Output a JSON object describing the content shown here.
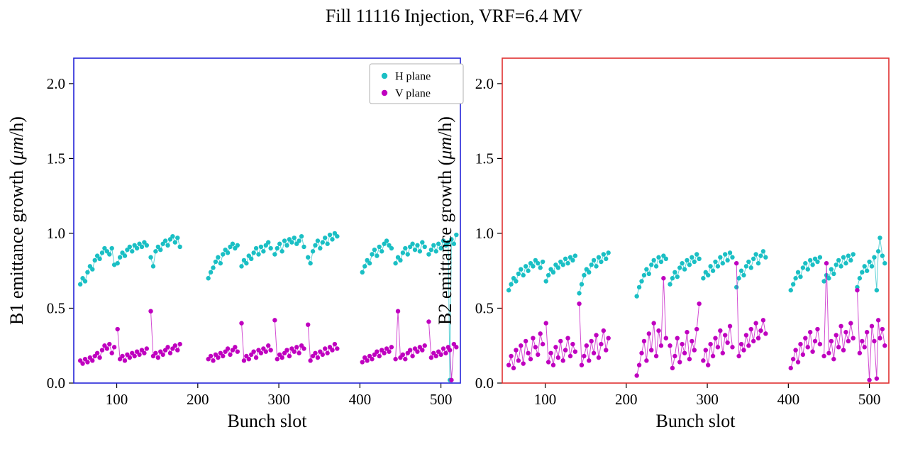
{
  "title": "Fill 11116 Injection, VRF=6.4 MV",
  "chart_data": {
    "type": "scatter",
    "xlabel": "Bunch slot",
    "xlim": [
      47,
      524
    ],
    "ylim": [
      0,
      2.17
    ],
    "grid": false,
    "x_ticks": {
      "values": [
        100,
        200,
        300,
        400,
        500
      ],
      "labels": [
        "100",
        "200",
        "300",
        "400",
        "500"
      ]
    },
    "y_ticks": {
      "values": [
        0,
        0.5,
        1.0,
        1.5,
        2.0
      ],
      "labels": [
        "0.0",
        "0.5",
        "1.0",
        "1.5",
        "2.0"
      ]
    },
    "legend": {
      "position": "upper right of left plot",
      "items": [
        {
          "label": "H plane",
          "color": "#1abfc4"
        },
        {
          "label": "V plane",
          "color": "#bf00bf"
        }
      ]
    },
    "charts": [
      {
        "name": "B1",
        "frame_color": "#2424d8",
        "ylabel_pre": "B1 emittance growth (",
        "ylabel_math": "μm",
        "ylabel_post": "/h)",
        "show_legend": true,
        "segments_x": [
          [
            55,
            58,
            61,
            64,
            67,
            70,
            73,
            76,
            79,
            82,
            85,
            88,
            91,
            94,
            97
          ],
          [
            101,
            104,
            107,
            110,
            113,
            116,
            119,
            122,
            125,
            128,
            131,
            134,
            137
          ],
          [
            142,
            145,
            148,
            151,
            154,
            157,
            160,
            163,
            166,
            169,
            172,
            175,
            178
          ],
          [
            213,
            216,
            219,
            222,
            225,
            228,
            231,
            234,
            237,
            240,
            243,
            246,
            249
          ],
          [
            254,
            257,
            260,
            263,
            266,
            269,
            272,
            275,
            278,
            281,
            284,
            287,
            290
          ],
          [
            295,
            298,
            301,
            304,
            307,
            310,
            313,
            316,
            319,
            322,
            325,
            328,
            331
          ],
          [
            336,
            339,
            342,
            345,
            348,
            351,
            354,
            357,
            360,
            363,
            366,
            369,
            372
          ],
          [
            403,
            406,
            409,
            412,
            415,
            418,
            421,
            424,
            427,
            430,
            433,
            436,
            439
          ],
          [
            444,
            447,
            450,
            453,
            456,
            459,
            462,
            465,
            468,
            471,
            474,
            477,
            480
          ],
          [
            485,
            488,
            491,
            494,
            497,
            500,
            503,
            506,
            509,
            511,
            513,
            516,
            519
          ]
        ],
        "series": [
          {
            "name": "H plane",
            "color": "#1abfc4",
            "segments_y": [
              [
                0.66,
                0.7,
                0.68,
                0.74,
                0.78,
                0.76,
                0.82,
                0.85,
                0.83,
                0.87,
                0.9,
                0.88,
                0.86,
                0.9,
                0.79
              ],
              [
                0.8,
                0.84,
                0.87,
                0.85,
                0.89,
                0.91,
                0.88,
                0.92,
                0.9,
                0.93,
                0.91,
                0.94,
                0.92
              ],
              [
                0.84,
                0.78,
                0.88,
                0.91,
                0.89,
                0.93,
                0.95,
                0.92,
                0.96,
                0.98,
                0.94,
                0.97,
                0.91
              ],
              [
                0.7,
                0.74,
                0.77,
                0.81,
                0.84,
                0.8,
                0.86,
                0.89,
                0.87,
                0.91,
                0.93,
                0.9,
                0.92
              ],
              [
                0.78,
                0.82,
                0.8,
                0.85,
                0.83,
                0.87,
                0.9,
                0.86,
                0.91,
                0.88,
                0.92,
                0.94,
                0.9
              ],
              [
                0.86,
                0.9,
                0.93,
                0.88,
                0.95,
                0.92,
                0.96,
                0.94,
                0.97,
                0.93,
                0.95,
                0.98,
                0.91
              ],
              [
                0.84,
                0.8,
                0.88,
                0.92,
                0.95,
                0.9,
                0.94,
                0.97,
                0.93,
                0.99,
                0.96,
                1.0,
                0.98
              ],
              [
                0.74,
                0.78,
                0.82,
                0.8,
                0.86,
                0.89,
                0.85,
                0.91,
                0.88,
                0.93,
                0.95,
                0.92,
                0.9
              ],
              [
                0.8,
                0.84,
                0.82,
                0.87,
                0.9,
                0.86,
                0.91,
                0.93,
                0.89,
                0.92,
                0.88,
                0.94,
                0.91
              ],
              [
                0.86,
                0.89,
                0.92,
                0.88,
                0.93,
                0.9,
                0.95,
                0.92,
                0.94,
                0.02,
                0.96,
                0.93,
                0.99
              ]
            ]
          },
          {
            "name": "V plane",
            "color": "#bf00bf",
            "segments_y": [
              [
                0.15,
                0.13,
                0.16,
                0.14,
                0.17,
                0.15,
                0.18,
                0.2,
                0.17,
                0.22,
                0.25,
                0.23,
                0.26,
                0.2,
                0.24
              ],
              [
                0.36,
                0.16,
                0.18,
                0.15,
                0.19,
                0.17,
                0.2,
                0.18,
                0.21,
                0.19,
                0.22,
                0.2,
                0.23
              ],
              [
                0.48,
                0.18,
                0.2,
                0.17,
                0.21,
                0.19,
                0.22,
                0.24,
                0.2,
                0.23,
                0.25,
                0.22,
                0.26
              ],
              [
                0.16,
                0.18,
                0.15,
                0.19,
                0.17,
                0.2,
                0.18,
                0.21,
                0.23,
                0.19,
                0.22,
                0.24,
                0.21
              ],
              [
                0.4,
                0.15,
                0.18,
                0.16,
                0.19,
                0.21,
                0.17,
                0.22,
                0.2,
                0.23,
                0.21,
                0.25,
                0.22
              ],
              [
                0.42,
                0.16,
                0.19,
                0.17,
                0.2,
                0.22,
                0.18,
                0.23,
                0.21,
                0.24,
                0.2,
                0.25,
                0.23
              ],
              [
                0.39,
                0.15,
                0.18,
                0.2,
                0.17,
                0.21,
                0.19,
                0.23,
                0.2,
                0.24,
                0.22,
                0.26,
                0.23
              ],
              [
                0.14,
                0.17,
                0.15,
                0.18,
                0.16,
                0.19,
                0.21,
                0.18,
                0.22,
                0.2,
                0.23,
                0.21,
                0.24
              ],
              [
                0.16,
                0.48,
                0.17,
                0.19,
                0.16,
                0.2,
                0.22,
                0.18,
                0.23,
                0.21,
                0.24,
                0.22,
                0.25
              ],
              [
                0.41,
                0.17,
                0.2,
                0.18,
                0.21,
                0.19,
                0.23,
                0.2,
                0.24,
                0.22,
                0.02,
                0.26,
                0.24
              ]
            ]
          }
        ]
      },
      {
        "name": "B2",
        "frame_color": "#e03030",
        "ylabel_pre": "B2 emittance growth (",
        "ylabel_math": "μm",
        "ylabel_post": "/h)",
        "show_legend": false,
        "segments_x": [
          [
            55,
            58,
            61,
            64,
            67,
            70,
            73,
            76,
            79,
            82,
            85,
            88,
            91,
            94,
            97
          ],
          [
            101,
            104,
            107,
            110,
            113,
            116,
            119,
            122,
            125,
            128,
            131,
            134,
            137
          ],
          [
            142,
            145,
            148,
            151,
            154,
            157,
            160,
            163,
            166,
            169,
            172,
            175,
            178
          ],
          [
            213,
            216,
            219,
            222,
            225,
            228,
            231,
            234,
            237,
            240,
            243,
            246,
            249
          ],
          [
            254,
            257,
            260,
            263,
            266,
            269,
            272,
            275,
            278,
            281,
            284,
            287,
            290
          ],
          [
            295,
            298,
            301,
            304,
            307,
            310,
            313,
            316,
            319,
            322,
            325,
            328,
            331
          ],
          [
            336,
            339,
            342,
            345,
            348,
            351,
            354,
            357,
            360,
            363,
            366,
            369,
            372
          ],
          [
            403,
            406,
            409,
            412,
            415,
            418,
            421,
            424,
            427,
            430,
            433,
            436,
            439
          ],
          [
            444,
            447,
            450,
            453,
            456,
            459,
            462,
            465,
            468,
            471,
            474,
            477,
            480
          ],
          [
            485,
            488,
            491,
            494,
            497,
            500,
            503,
            506,
            509,
            511,
            513,
            516,
            519
          ]
        ],
        "series": [
          {
            "name": "H plane",
            "color": "#1abfc4",
            "segments_y": [
              [
                0.62,
                0.66,
                0.7,
                0.68,
                0.73,
                0.76,
                0.72,
                0.78,
                0.75,
                0.8,
                0.78,
                0.82,
                0.8,
                0.77,
                0.81
              ],
              [
                0.68,
                0.72,
                0.76,
                0.74,
                0.79,
                0.77,
                0.81,
                0.79,
                0.83,
                0.8,
                0.84,
                0.82,
                0.85
              ],
              [
                0.6,
                0.66,
                0.72,
                0.76,
                0.74,
                0.79,
                0.82,
                0.78,
                0.84,
                0.81,
                0.86,
                0.83,
                0.87
              ],
              [
                0.58,
                0.64,
                0.68,
                0.72,
                0.76,
                0.73,
                0.79,
                0.82,
                0.78,
                0.84,
                0.81,
                0.85,
                0.83
              ],
              [
                0.66,
                0.7,
                0.74,
                0.71,
                0.77,
                0.8,
                0.76,
                0.82,
                0.79,
                0.84,
                0.81,
                0.86,
                0.83
              ],
              [
                0.7,
                0.74,
                0.72,
                0.78,
                0.75,
                0.81,
                0.78,
                0.84,
                0.8,
                0.86,
                0.82,
                0.87,
                0.84
              ],
              [
                0.64,
                0.7,
                0.75,
                0.72,
                0.78,
                0.81,
                0.77,
                0.83,
                0.86,
                0.8,
                0.85,
                0.88,
                0.84
              ],
              [
                0.62,
                0.66,
                0.7,
                0.74,
                0.71,
                0.77,
                0.8,
                0.76,
                0.82,
                0.79,
                0.83,
                0.81,
                0.84
              ],
              [
                0.68,
                0.72,
                0.7,
                0.76,
                0.73,
                0.79,
                0.82,
                0.78,
                0.84,
                0.8,
                0.85,
                0.82,
                0.86
              ],
              [
                0.64,
                0.7,
                0.74,
                0.78,
                0.75,
                0.81,
                0.78,
                0.84,
                0.62,
                0.88,
                0.97,
                0.85,
                0.8
              ]
            ]
          },
          {
            "name": "V plane",
            "color": "#bf00bf",
            "segments_y": [
              [
                0.12,
                0.18,
                0.1,
                0.22,
                0.15,
                0.25,
                0.13,
                0.28,
                0.2,
                0.16,
                0.3,
                0.24,
                0.19,
                0.33,
                0.26
              ],
              [
                0.4,
                0.14,
                0.2,
                0.12,
                0.24,
                0.17,
                0.28,
                0.15,
                0.22,
                0.3,
                0.18,
                0.26,
                0.21
              ],
              [
                0.53,
                0.12,
                0.18,
                0.25,
                0.15,
                0.28,
                0.2,
                0.32,
                0.17,
                0.26,
                0.35,
                0.22,
                0.3
              ],
              [
                0.05,
                0.12,
                0.2,
                0.28,
                0.15,
                0.33,
                0.22,
                0.4,
                0.18,
                0.35,
                0.25,
                0.7,
                0.3
              ],
              [
                0.25,
                0.1,
                0.18,
                0.3,
                0.14,
                0.26,
                0.2,
                0.34,
                0.16,
                0.28,
                0.22,
                0.36,
                0.53
              ],
              [
                0.15,
                0.22,
                0.12,
                0.26,
                0.18,
                0.3,
                0.24,
                0.35,
                0.2,
                0.32,
                0.27,
                0.38,
                0.24
              ],
              [
                0.8,
                0.18,
                0.26,
                0.22,
                0.32,
                0.25,
                0.36,
                0.28,
                0.4,
                0.3,
                0.35,
                0.42,
                0.33
              ],
              [
                0.1,
                0.16,
                0.22,
                0.14,
                0.26,
                0.19,
                0.3,
                0.24,
                0.34,
                0.21,
                0.28,
                0.36,
                0.26
              ],
              [
                0.18,
                0.8,
                0.2,
                0.28,
                0.16,
                0.32,
                0.24,
                0.38,
                0.22,
                0.34,
                0.28,
                0.4,
                0.3
              ],
              [
                0.62,
                0.2,
                0.28,
                0.24,
                0.34,
                0.02,
                0.38,
                0.28,
                0.03,
                0.42,
                0.3,
                0.36,
                0.25
              ]
            ]
          }
        ]
      }
    ]
  }
}
